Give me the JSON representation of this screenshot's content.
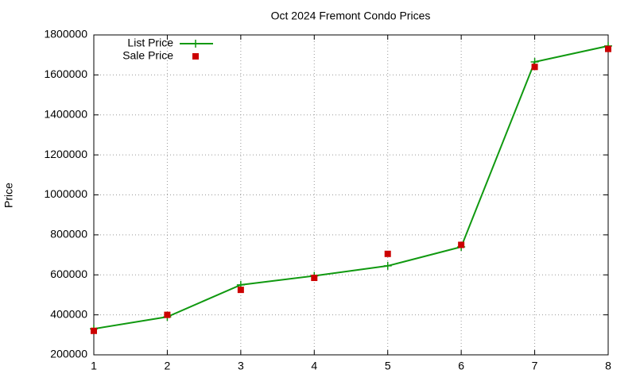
{
  "chart_data": {
    "type": "line",
    "title": "Oct 2024 Fremont Condo Prices",
    "y_label": "Price",
    "x": [
      1,
      2,
      3,
      4,
      5,
      6,
      7,
      8
    ],
    "series": [
      {
        "name": "List Price",
        "color": "#109910",
        "style": "linespoints",
        "marker": "plus",
        "values": [
          330000,
          390000,
          550000,
          595000,
          645000,
          740000,
          1665000,
          1745000
        ]
      },
      {
        "name": "Sale Price",
        "color": "#cc0000",
        "style": "points",
        "marker": "square",
        "values": [
          320000,
          400000,
          525000,
          585000,
          705000,
          750000,
          1640000,
          1730000
        ]
      }
    ],
    "xlim": [
      1,
      8
    ],
    "xticks": [
      1,
      2,
      3,
      4,
      5,
      6,
      7,
      8
    ],
    "ylim": [
      200000,
      1800000
    ],
    "yticks": [
      200000,
      400000,
      600000,
      800000,
      1000000,
      1200000,
      1400000,
      1600000,
      1800000
    ],
    "grid": true,
    "legend": "top-left"
  }
}
